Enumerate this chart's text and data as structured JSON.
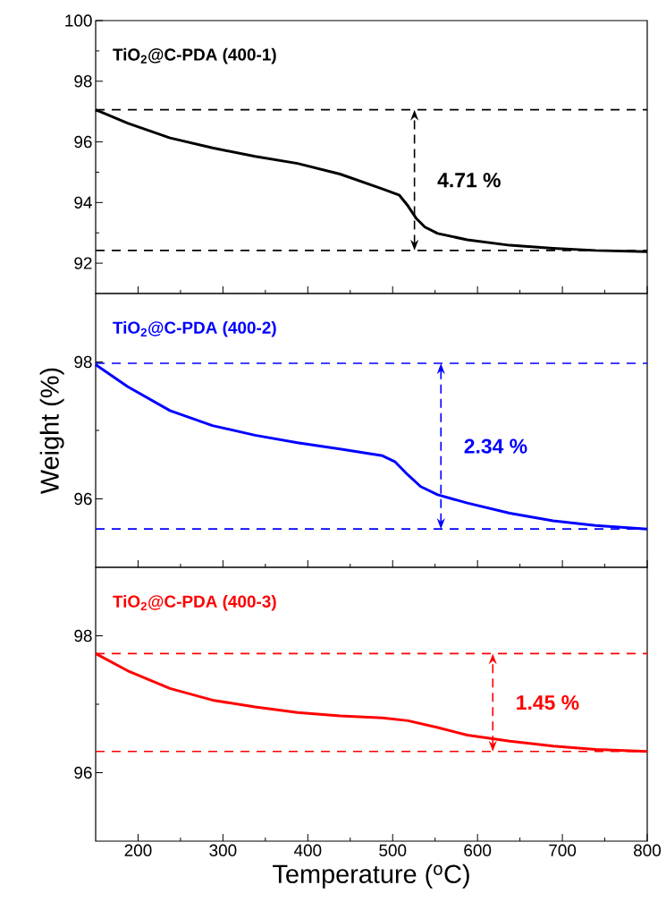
{
  "chart_data": [
    {
      "type": "line",
      "tick_labels": "y",
      "xlim": [
        150,
        800
      ],
      "xticks": [
        200,
        300,
        400,
        500,
        600,
        700,
        800
      ],
      "ylim": [
        91,
        100
      ],
      "yticks": [
        92,
        94,
        96,
        98,
        100
      ],
      "series": [
        {
          "name": "TiO$_{2}$@C-PDA (400-1)",
          "color": "#000000",
          "x": [
            150,
            187.6,
            237.6,
            287.7,
            337.8,
            387.8,
            437.9,
            488,
            508,
            518,
            528,
            538,
            553,
            588,
            638,
            689,
            739,
            800
          ],
          "values": [
            97.06,
            96.62,
            96.13,
            95.8,
            95.52,
            95.29,
            94.94,
            94.45,
            94.24,
            93.89,
            93.47,
            93.19,
            92.98,
            92.77,
            92.59,
            92.49,
            92.42,
            92.38
          ]
        }
      ],
      "ref_lines": [
        {
          "axis": "y",
          "value": 97.06,
          "color": "#000000",
          "line_style": "dashed"
        },
        {
          "axis": "y",
          "value": 92.42,
          "color": "#000000",
          "line_style": "dashed"
        }
      ],
      "annotations": [
        "4.71 %"
      ]
    },
    {
      "type": "line",
      "tick_labels": "y",
      "ylabel": "Weight (%)",
      "xlim": [
        150,
        800
      ],
      "xticks": [
        200,
        300,
        400,
        500,
        600,
        700,
        800
      ],
      "ylim": [
        95,
        99
      ],
      "yticks": [
        96,
        98
      ],
      "series": [
        {
          "name": "TiO$_{2}$@C-PDA (400-2)",
          "color": "#0000ff",
          "x": [
            150,
            187.6,
            237.6,
            287.7,
            337.8,
            387.8,
            437.9,
            488,
            503,
            518,
            533,
            553,
            588,
            638,
            689,
            739,
            800
          ],
          "values": [
            97.96,
            97.64,
            97.29,
            97.07,
            96.93,
            96.82,
            96.73,
            96.63,
            96.54,
            96.35,
            96.18,
            96.06,
            95.94,
            95.79,
            95.68,
            95.61,
            95.56
          ]
        }
      ],
      "ref_lines": [
        {
          "axis": "y",
          "value": 97.98,
          "color": "#0000ff",
          "line_style": "dashed"
        },
        {
          "axis": "y",
          "value": 95.56,
          "color": "#0000ff",
          "line_style": "dashed"
        }
      ],
      "annotations": [
        "2.34 %"
      ]
    },
    {
      "type": "line",
      "xlabel": "Temperature ($^{o}$C)",
      "xlim": [
        150,
        800
      ],
      "xticks": [
        200,
        300,
        400,
        500,
        600,
        700,
        800
      ],
      "ylim": [
        95,
        99
      ],
      "yticks": [
        96,
        98
      ],
      "series": [
        {
          "name": "TiO$_{2}$@C-PDA (400-3)",
          "color": "#ff0000",
          "x": [
            150,
            187.6,
            237.6,
            287.7,
            337.8,
            387.8,
            437.9,
            488,
            518,
            553,
            588,
            638,
            689,
            739,
            800
          ],
          "values": [
            97.74,
            97.49,
            97.23,
            97.06,
            96.96,
            96.88,
            96.83,
            96.8,
            96.76,
            96.66,
            96.55,
            96.46,
            96.39,
            96.34,
            96.31
          ]
        }
      ],
      "ref_lines": [
        {
          "axis": "y",
          "value": 97.74,
          "color": "#ff0000",
          "line_style": "dashed"
        },
        {
          "axis": "y",
          "value": 96.31,
          "color": "#ff0000",
          "line_style": "dashed"
        }
      ],
      "annotations": [
        "1.45 %"
      ]
    }
  ]
}
